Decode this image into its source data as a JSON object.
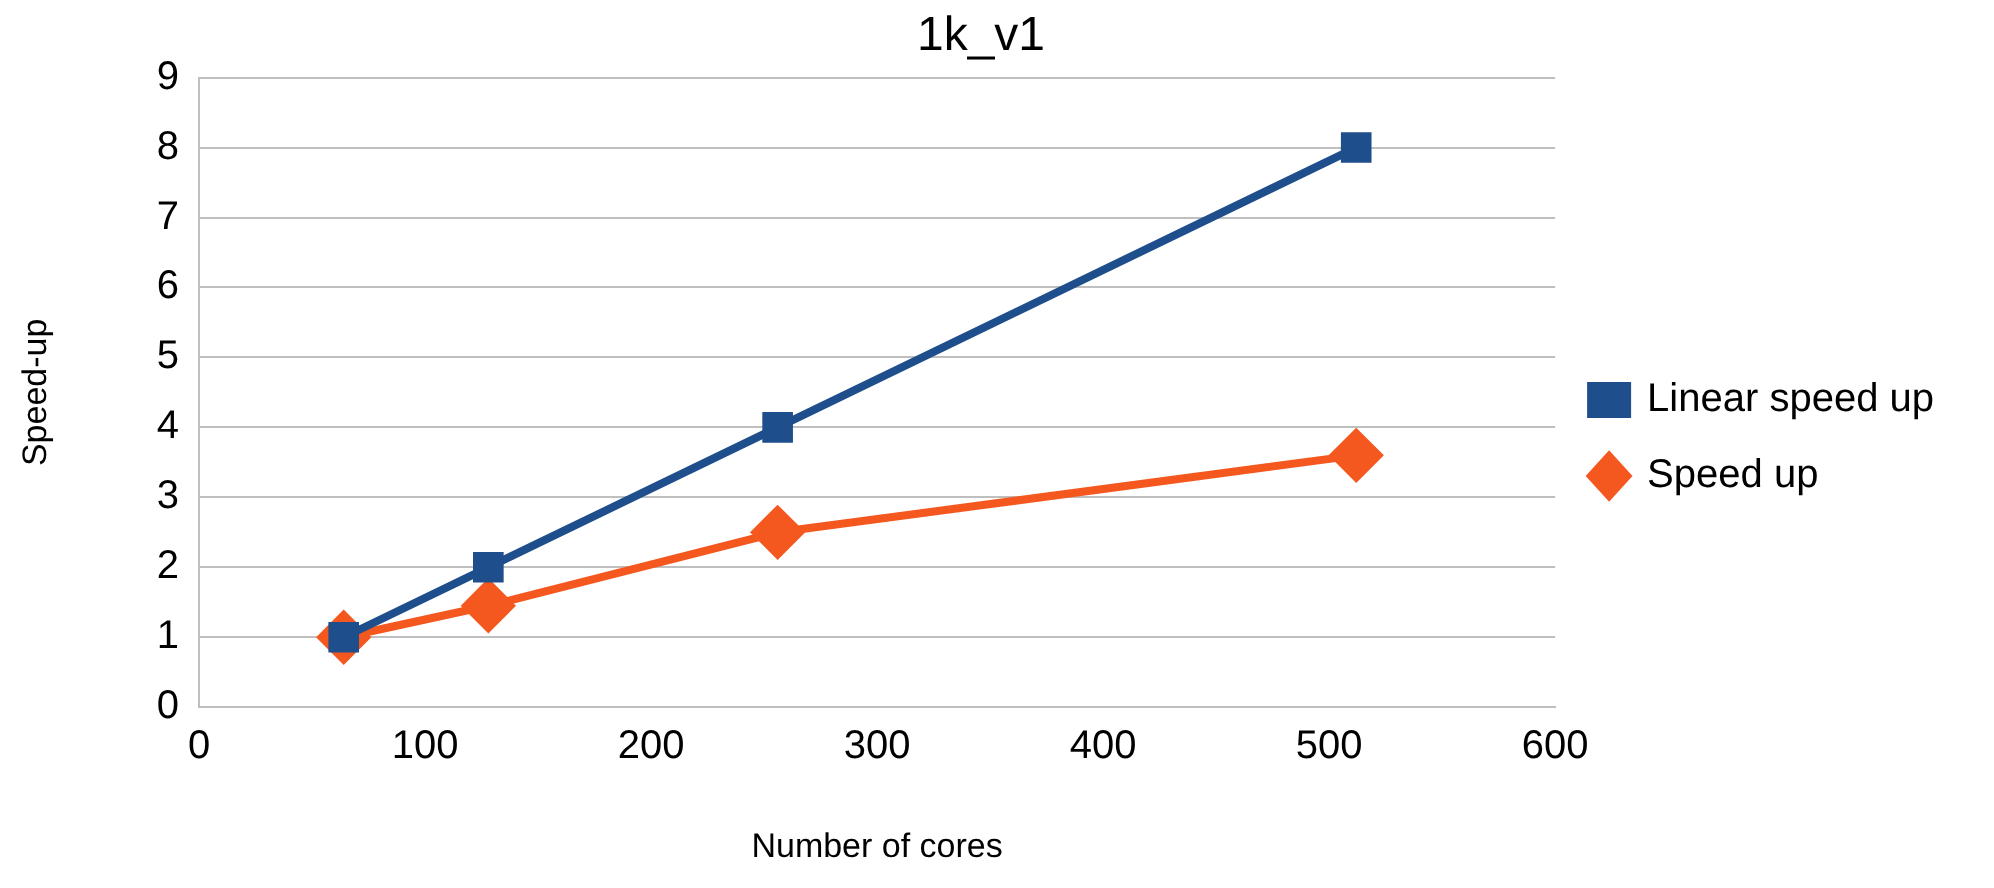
{
  "chart_data": {
    "type": "line",
    "title": "1k_v1",
    "xlabel": "Number of cores",
    "ylabel": "Speed-up",
    "x": [
      64,
      128,
      256,
      512
    ],
    "series": [
      {
        "name": "Linear speed up",
        "color": "#1f4e8c",
        "values": [
          1,
          2,
          4,
          8
        ],
        "marker": "square"
      },
      {
        "name": "Speed up",
        "color": "#f5581f",
        "values": [
          1,
          1.45,
          2.5,
          3.6
        ],
        "marker": "diamond"
      }
    ],
    "xlim": [
      0,
      600
    ],
    "xticks": [
      0,
      100,
      200,
      300,
      400,
      500,
      600
    ],
    "ylim": [
      0,
      9
    ],
    "yticks": [
      0,
      1,
      2,
      3,
      4,
      5,
      6,
      7,
      8,
      9
    ],
    "grid": "y",
    "legend": "right",
    "line_style": "solid"
  }
}
